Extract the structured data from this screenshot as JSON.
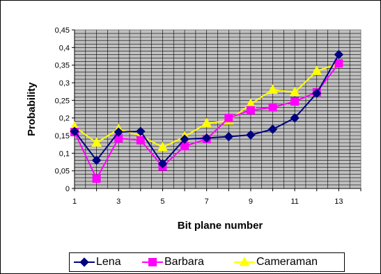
{
  "chart_data": {
    "type": "line",
    "title": "",
    "xlabel": "Bit plane number",
    "ylabel": "Probability",
    "x": [
      1,
      2,
      3,
      4,
      5,
      6,
      7,
      8,
      9,
      10,
      11,
      12,
      13
    ],
    "xlim": [
      1,
      14
    ],
    "ylim": [
      0,
      0.45
    ],
    "x_ticks": [
      "1",
      "3",
      "5",
      "7",
      "9",
      "11",
      "13"
    ],
    "x_tick_values": [
      1,
      3,
      5,
      7,
      9,
      11,
      13
    ],
    "y_ticks": [
      "0",
      "0,05",
      "0,1",
      "0,15",
      "0,2",
      "0,25",
      "0,3",
      "0,35",
      "0,4",
      "0,45"
    ],
    "y_tick_values": [
      0,
      0.05,
      0.1,
      0.15,
      0.2,
      0.25,
      0.3,
      0.35,
      0.4,
      0.45
    ],
    "grid": true,
    "legend_position": "bottom",
    "plot_background": "#c0c0c0",
    "series": [
      {
        "name": "Lena",
        "color": "#000080",
        "marker": "diamond",
        "values": [
          0.162,
          0.08,
          0.16,
          0.162,
          0.07,
          0.14,
          0.143,
          0.147,
          0.152,
          0.168,
          0.2,
          0.27,
          0.38
        ]
      },
      {
        "name": "Barbara",
        "color": "#ff00ff",
        "marker": "square",
        "values": [
          0.16,
          0.028,
          0.142,
          0.137,
          0.062,
          0.12,
          0.14,
          0.2,
          0.222,
          0.23,
          0.247,
          0.273,
          0.355
        ]
      },
      {
        "name": "Cameraman",
        "color": "#ffff00",
        "marker": "triangle",
        "values": [
          0.175,
          0.13,
          0.168,
          0.15,
          0.117,
          0.147,
          0.185,
          0.192,
          0.24,
          0.28,
          0.273,
          0.333,
          0.355
        ]
      }
    ]
  }
}
